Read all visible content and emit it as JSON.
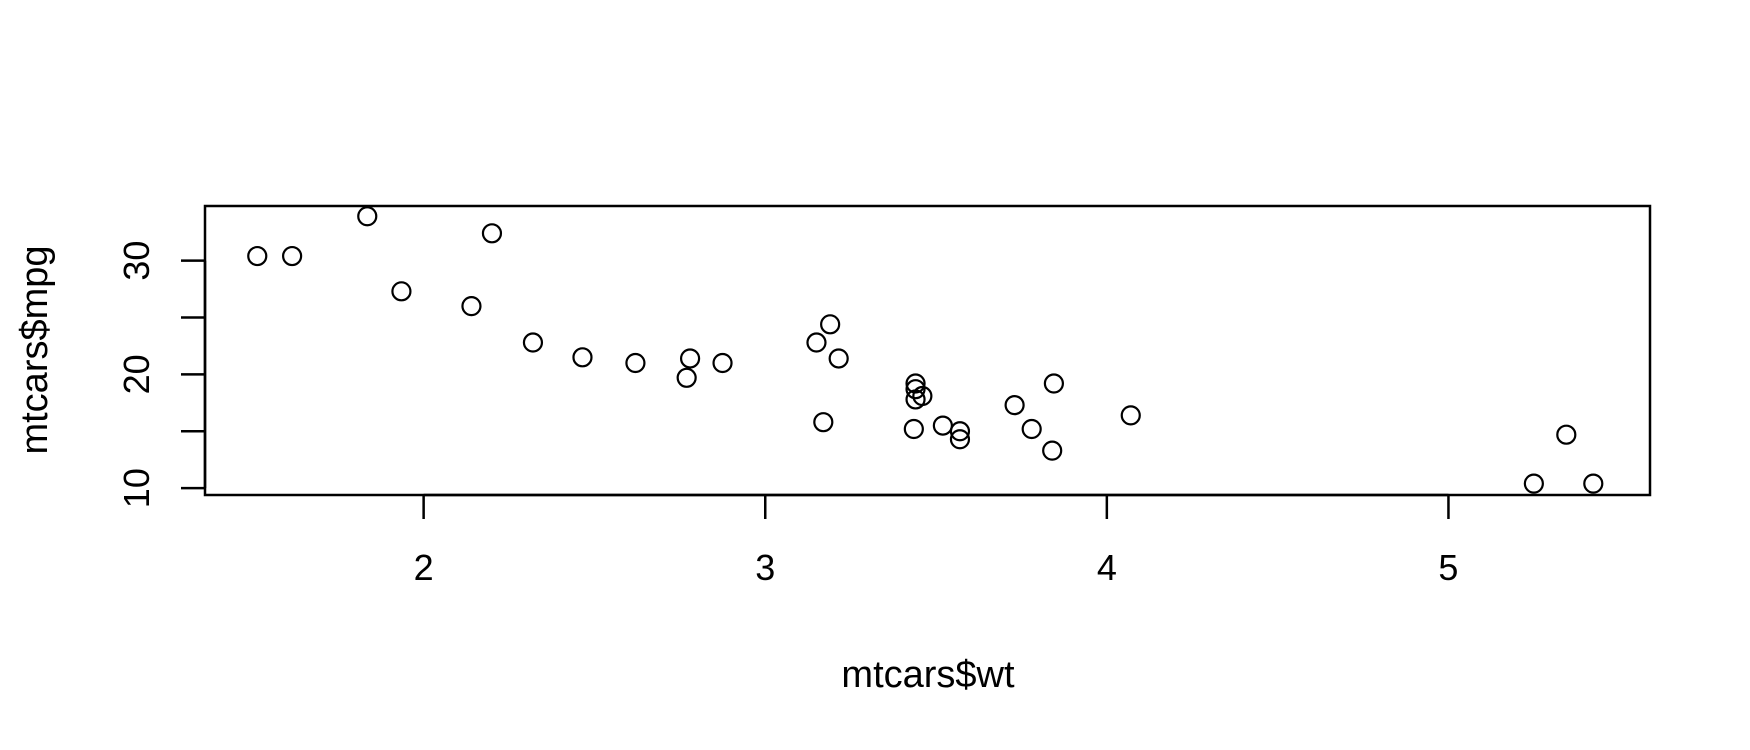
{
  "chart_data": {
    "type": "scatter",
    "title": "",
    "xlabel": "mtcars$wt",
    "ylabel": "mtcars$mpg",
    "xlim": [
      1.36,
      5.59
    ],
    "ylim": [
      9.4,
      34.8
    ],
    "x_ticks": [
      "2",
      "3",
      "4",
      "5"
    ],
    "y_ticks": [
      "10",
      "15",
      "20",
      "25",
      "30"
    ],
    "y_tick_labels": [
      "10",
      "20",
      "30"
    ],
    "grid": false,
    "legend": "none",
    "marker": "open-circle",
    "points": [
      {
        "x": 2.62,
        "y": 21.0
      },
      {
        "x": 2.875,
        "y": 21.0
      },
      {
        "x": 2.32,
        "y": 22.8
      },
      {
        "x": 3.215,
        "y": 21.4
      },
      {
        "x": 3.44,
        "y": 18.7
      },
      {
        "x": 3.46,
        "y": 18.1
      },
      {
        "x": 3.57,
        "y": 14.3
      },
      {
        "x": 3.19,
        "y": 24.4
      },
      {
        "x": 3.15,
        "y": 22.8
      },
      {
        "x": 3.44,
        "y": 19.2
      },
      {
        "x": 3.44,
        "y": 17.8
      },
      {
        "x": 4.07,
        "y": 16.4
      },
      {
        "x": 3.73,
        "y": 17.3
      },
      {
        "x": 3.78,
        "y": 15.2
      },
      {
        "x": 5.25,
        "y": 10.4
      },
      {
        "x": 5.424,
        "y": 10.4
      },
      {
        "x": 5.345,
        "y": 14.7
      },
      {
        "x": 2.2,
        "y": 32.4
      },
      {
        "x": 1.615,
        "y": 30.4
      },
      {
        "x": 1.835,
        "y": 33.9
      },
      {
        "x": 2.465,
        "y": 21.5
      },
      {
        "x": 3.52,
        "y": 15.5
      },
      {
        "x": 3.435,
        "y": 15.2
      },
      {
        "x": 3.84,
        "y": 13.3
      },
      {
        "x": 3.845,
        "y": 19.2
      },
      {
        "x": 1.935,
        "y": 27.3
      },
      {
        "x": 2.14,
        "y": 26.0
      },
      {
        "x": 1.513,
        "y": 30.4
      },
      {
        "x": 3.17,
        "y": 15.8
      },
      {
        "x": 2.77,
        "y": 19.7
      },
      {
        "x": 3.57,
        "y": 15.0
      },
      {
        "x": 2.78,
        "y": 21.4
      }
    ]
  }
}
